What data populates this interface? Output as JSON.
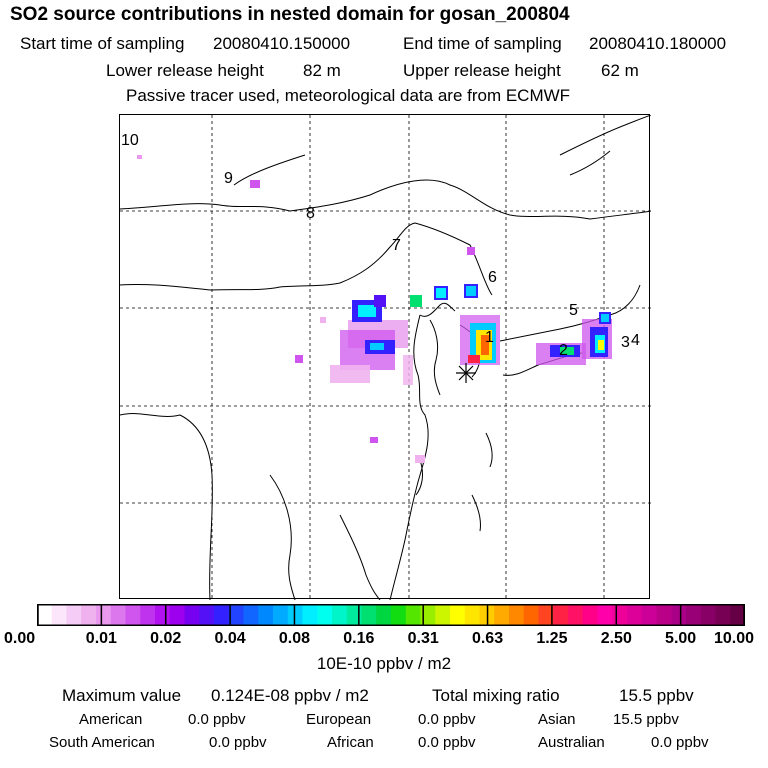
{
  "header": {
    "title": "SO2 source contributions in nested domain for gosan_200804",
    "start_label": "Start time of sampling",
    "start_value": "20080410.150000",
    "end_label": "End time of sampling",
    "end_value": "20080410.180000",
    "lower_label": "Lower release height",
    "lower_value": "82 m",
    "upper_label": "Upper release height",
    "upper_value": "62 m",
    "note": "Passive tracer used, meteorological data are from ECMWF"
  },
  "map": {
    "site_marker": "station-star-icon",
    "region_labels": [
      "10",
      "9",
      "8",
      "7",
      "6",
      "5",
      "4",
      "3",
      "2",
      "1"
    ]
  },
  "colorbar": {
    "ticks": [
      "0.00",
      "0.01",
      "0.02",
      "0.04",
      "0.08",
      "0.16",
      "0.31",
      "0.63",
      "1.25",
      "2.50",
      "5.00",
      "10.00"
    ],
    "colors": [
      "#ffffff",
      "#fbe6fb",
      "#f5ccf5",
      "#efb2ef",
      "#e999ee",
      "#dd77ee",
      "#cf55ee",
      "#c033ee",
      "#b011ee",
      "#9c00ee",
      "#7700f0",
      "#5511f5",
      "#3322ff",
      "#2244ff",
      "#1166ff",
      "#0088ff",
      "#00aaff",
      "#00ccff",
      "#00eeff",
      "#00ffee",
      "#00f5c8",
      "#00eb9e",
      "#00e070",
      "#00d640",
      "#11dd11",
      "#55e600",
      "#99ee00",
      "#ccf500",
      "#ffff00",
      "#ffe600",
      "#ffcc00",
      "#ffaa00",
      "#ff8800",
      "#ff6600",
      "#ff4422",
      "#ff2244",
      "#ff1166",
      "#ff0088",
      "#ff00aa",
      "#ee0099",
      "#dd0099",
      "#cc0099",
      "#bb0088",
      "#aa0088",
      "#990077",
      "#880066",
      "#770055",
      "#660044"
    ],
    "unit": "10E-10 ppbv / m2"
  },
  "stats": {
    "max_label": "Maximum value",
    "max_value": "0.124E-08 ppbv / m2",
    "total_label": "Total mixing ratio",
    "total_value": "15.5 ppbv",
    "regions": [
      {
        "name": "American",
        "value": "0.0 ppbv"
      },
      {
        "name": "European",
        "value": "0.0 ppbv"
      },
      {
        "name": "Asian",
        "value": "15.5 ppbv"
      },
      {
        "name": "South American",
        "value": "0.0 ppbv"
      },
      {
        "name": "African",
        "value": "0.0 ppbv"
      },
      {
        "name": "Australian",
        "value": "0.0 ppbv"
      }
    ]
  }
}
